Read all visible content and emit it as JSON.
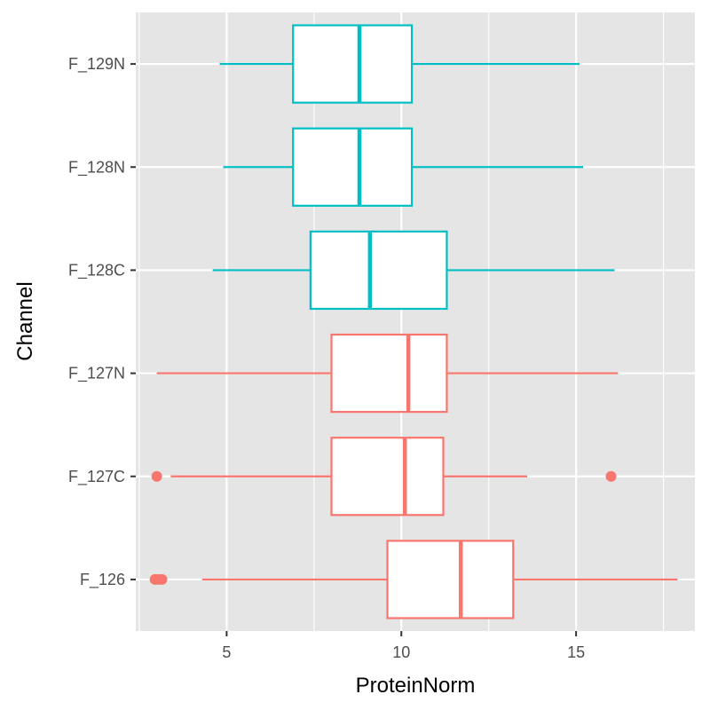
{
  "chart_data": {
    "type": "boxplot",
    "orientation": "horizontal",
    "xlabel": "ProteinNorm",
    "ylabel": "Channel",
    "xlim": [
      2.4,
      18.4
    ],
    "x_ticks": [
      5,
      10,
      15
    ],
    "x_tick_labels": [
      "5",
      "10",
      "15"
    ],
    "x_minor_ticks": [
      2.5,
      7.5,
      12.5,
      17.5
    ],
    "grid": true,
    "background": "#e5e5e5",
    "gridline_color": "#ffffff",
    "categories": [
      "F_126",
      "F_127C",
      "F_127N",
      "F_128C",
      "F_128N",
      "F_129N"
    ],
    "boxes": [
      {
        "category": "F_126",
        "group_color": "#f8766d",
        "whisker_low": 4.3,
        "q1": 9.6,
        "median": 11.7,
        "q3": 13.2,
        "whisker_high": 17.9,
        "outliers": [
          2.95,
          3.05,
          3.15
        ]
      },
      {
        "category": "F_127C",
        "group_color": "#f8766d",
        "whisker_low": 3.4,
        "q1": 8.0,
        "median": 10.1,
        "q3": 11.2,
        "whisker_high": 13.6,
        "outliers": [
          3.0,
          16.0
        ]
      },
      {
        "category": "F_127N",
        "group_color": "#f8766d",
        "whisker_low": 3.0,
        "q1": 8.0,
        "median": 10.2,
        "q3": 11.3,
        "whisker_high": 16.2,
        "outliers": []
      },
      {
        "category": "F_128C",
        "group_color": "#00bfc4",
        "whisker_low": 4.6,
        "q1": 7.4,
        "median": 9.1,
        "q3": 11.3,
        "whisker_high": 16.1,
        "outliers": []
      },
      {
        "category": "F_128N",
        "group_color": "#00bfc4",
        "whisker_low": 4.9,
        "q1": 6.9,
        "median": 8.8,
        "q3": 10.3,
        "whisker_high": 15.2,
        "outliers": []
      },
      {
        "category": "F_129N",
        "group_color": "#00bfc4",
        "whisker_low": 4.8,
        "q1": 6.9,
        "median": 8.8,
        "q3": 10.3,
        "whisker_high": 15.1,
        "outliers": []
      }
    ]
  }
}
